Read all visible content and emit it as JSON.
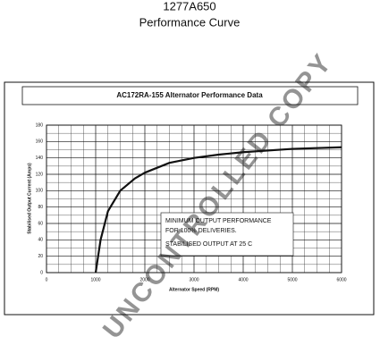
{
  "chart_data": {
    "type": "line",
    "document_title": "1277A650",
    "document_subtitle": "Performance Curve",
    "title": "AC172RA-155 Alternator Performance Data",
    "x_label": "Alternator Speed (RPM)",
    "y_label": "Stabilised Output Current (Amps)",
    "x": [
      1000,
      1100,
      1250,
      1500,
      1800,
      2000,
      2500,
      3000,
      3500,
      4000,
      5000,
      6000
    ],
    "series": [
      {
        "name": "Output",
        "color": "#111111",
        "values": [
          0,
          40,
          75,
          100,
          115,
          122,
          134,
          140,
          144,
          147,
          151,
          153
        ]
      }
    ],
    "xlim": [
      0,
      6000
    ],
    "xticks": [
      0,
      1000,
      2000,
      3000,
      4000,
      5000,
      6000
    ],
    "ylim": [
      0,
      180
    ],
    "yticks": [
      0,
      20,
      40,
      60,
      80,
      100,
      120,
      140,
      160,
      180
    ],
    "grid": true,
    "grid_subdivisions": {
      "x": 4,
      "y": 2
    },
    "annotations": [
      "MINIMUM OUTPUT PERFORMANCE",
      "FOR 100% DELIVERIES.",
      "STABILISED OUTPUT AT 25 C"
    ],
    "watermark": "UNCONTROLLED COPY"
  }
}
